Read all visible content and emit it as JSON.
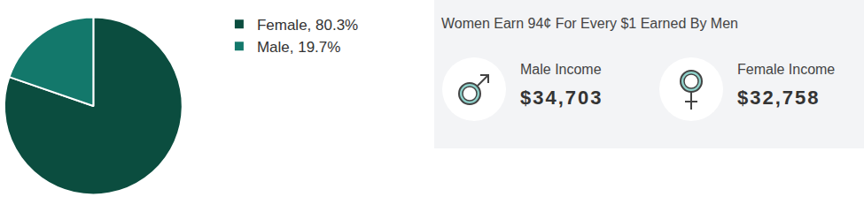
{
  "chart_data": {
    "type": "pie",
    "categories": [
      "Female, 80.3%",
      "Male, 19.7%"
    ],
    "values": [
      80.3,
      19.7
    ],
    "colors": [
      "#0b4d3f",
      "#13786b"
    ],
    "legend": "right"
  },
  "income_panel": {
    "title": "Women Earn 94¢ For Every $1 Earned By Men",
    "items": [
      {
        "label": "Male Income",
        "value": "$34,703"
      },
      {
        "label": "Female Income",
        "value": "$32,758"
      }
    ]
  }
}
